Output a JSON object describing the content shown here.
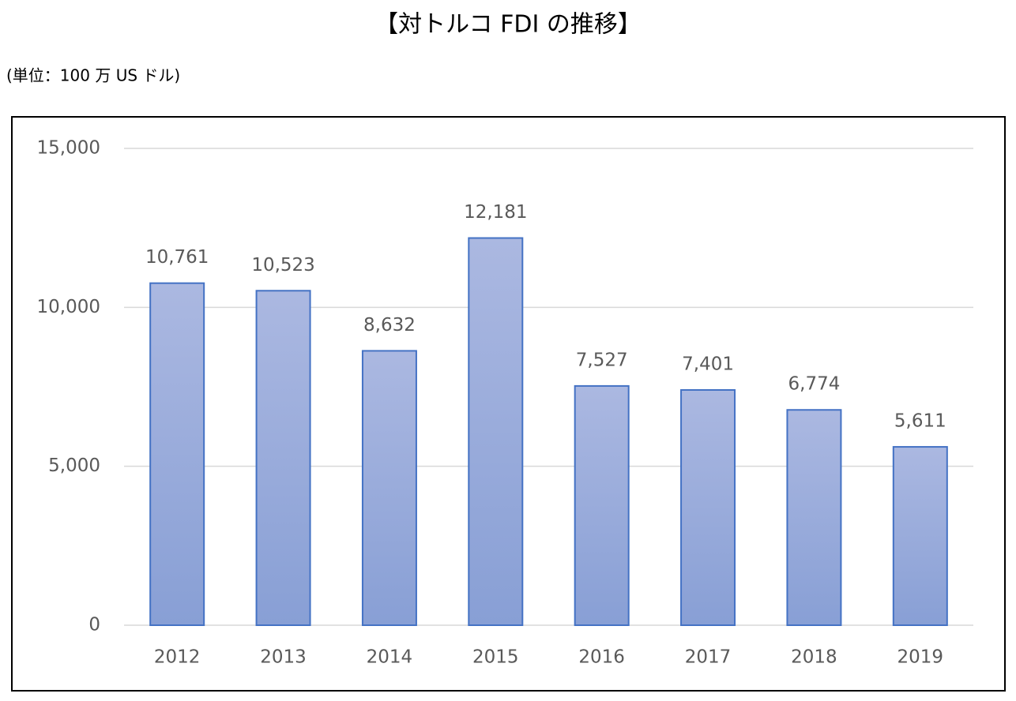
{
  "chart_data": {
    "type": "bar",
    "title": "【対トルコ FDI の推移】",
    "subtitle": "(単位：100 万 US ドル)",
    "categories": [
      "2012",
      "2013",
      "2014",
      "2015",
      "2016",
      "2017",
      "2018",
      "2019"
    ],
    "values": [
      10761,
      10523,
      8632,
      12181,
      7527,
      7401,
      6774,
      5611
    ],
    "value_labels": [
      "10,761",
      "10,523",
      "8,632",
      "12,181",
      "7,527",
      "7,401",
      "6,774",
      "5,611"
    ],
    "color": "#4472c4",
    "ylim": [
      0,
      15000
    ],
    "yticks": [
      0,
      {
        "value": 5000,
        "label": "5,000"
      },
      {
        "value": 10000,
        "label": "10,000"
      },
      {
        "value": 15000,
        "label": "15,000"
      }
    ],
    "grid": true
  }
}
